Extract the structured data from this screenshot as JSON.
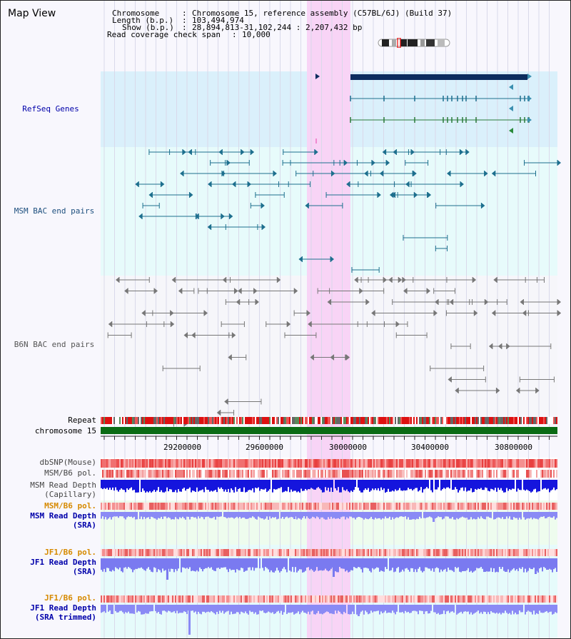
{
  "view_title": "Map View",
  "info": {
    "chromosome_key": "Chromosome",
    "chromosome_val": "Chromosome 15, reference assembly (C57BL/6J) (Build 37)",
    "length_key": "Length (b.p.)",
    "length_val": "103,494,974",
    "show_key": "Show (b.p.)",
    "show_val": "28,894,813-31,102,244 : 2,207,432 bp",
    "coverage_key": "Read coverage check span",
    "coverage_val": "10,000"
  },
  "tracks": {
    "refseq": "RefSeq Genes",
    "msm_bac": "MSM BAC end pairs",
    "b6n_bac": "B6N BAC end pairs",
    "repeat": "Repeat",
    "chromosome": "chromosome 15",
    "dbsnp": "dbSNP(Mouse)",
    "msm_b6_pol": "MSM/B6 pol.",
    "msm_depth_cap_1": "MSM Read Depth",
    "msm_depth_cap_2": "(Capillary)",
    "msm_b6_pol_sra": "MSM/B6 pol.",
    "msm_depth_sra_1": "MSM Read Depth",
    "msm_depth_sra_2": "(SRA)",
    "jf1_b6_pol": "JF1/B6 pol.",
    "jf1_depth_sra_1": "JF1 Read Depth",
    "jf1_depth_sra_2": "(SRA)",
    "jf1_b6_pol_trim": "JF1/B6 pol.",
    "jf1_depth_trim_1": "JF1 Read Depth",
    "jf1_depth_trim_2": "(SRA trimmed)"
  },
  "axis": {
    "ticks": [
      "29200000",
      "29600000",
      "30000000",
      "30400000",
      "30800000"
    ]
  },
  "colors": {
    "refseq_bg": "#daf0fb",
    "msm_bac_bg": "#e7fbfb",
    "highlight": "#f8d4f6",
    "gene_bar": "#0c2d5e",
    "msm_pair": "#1d6f8e",
    "b6n_pair": "#777777",
    "chrom_green": "#0a6b14",
    "depth_blue": "#1515dd",
    "depth_light": "#8a8af5",
    "label_blue": "#0000aa",
    "label_orange": "#d68a00",
    "label_gray": "#444444"
  }
}
